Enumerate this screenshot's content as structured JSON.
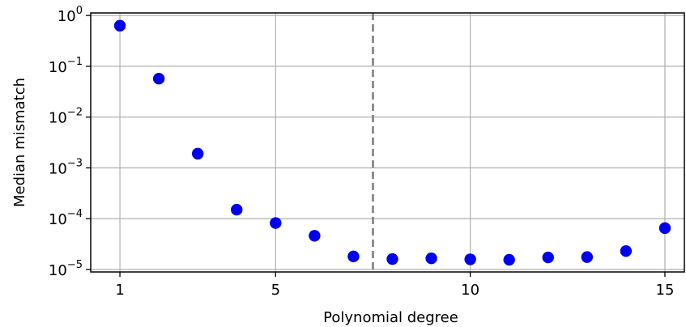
{
  "chart_data": {
    "type": "scatter",
    "xlabel": "Polynomial degree",
    "ylabel": "Median mismatch",
    "xlim": [
      0.25,
      15.5
    ],
    "ylim_exp": [
      -5.05,
      0.05
    ],
    "yscale": "log",
    "grid": true,
    "x_ticks": [
      {
        "value": 1,
        "label": "1"
      },
      {
        "value": 5,
        "label": "5"
      },
      {
        "value": 10,
        "label": "10"
      },
      {
        "value": 15,
        "label": "15"
      }
    ],
    "y_ticks": [
      {
        "exp": 0,
        "base": "10",
        "power": "0"
      },
      {
        "exp": -1,
        "base": "10",
        "power": "−1"
      },
      {
        "exp": -2,
        "base": "10",
        "power": "−2"
      },
      {
        "exp": -3,
        "base": "10",
        "power": "−3"
      },
      {
        "exp": -4,
        "base": "10",
        "power": "−4"
      },
      {
        "exp": -5,
        "base": "10",
        "power": "−5"
      }
    ],
    "vertical_line_x": 7.5,
    "marker_color": "#0000ee",
    "vline_color": "#7f7f7f",
    "series": [
      {
        "x": [
          1,
          2,
          3,
          4,
          5,
          6,
          7,
          8,
          9,
          10,
          11,
          12,
          13,
          14,
          15
        ],
        "y": [
          0.63,
          0.057,
          0.0019,
          0.00015,
          8.2e-05,
          4.6e-05,
          1.8e-05,
          1.6e-05,
          1.65e-05,
          1.58e-05,
          1.55e-05,
          1.72e-05,
          1.75e-05,
          2.3e-05,
          6.5e-05
        ]
      }
    ]
  }
}
